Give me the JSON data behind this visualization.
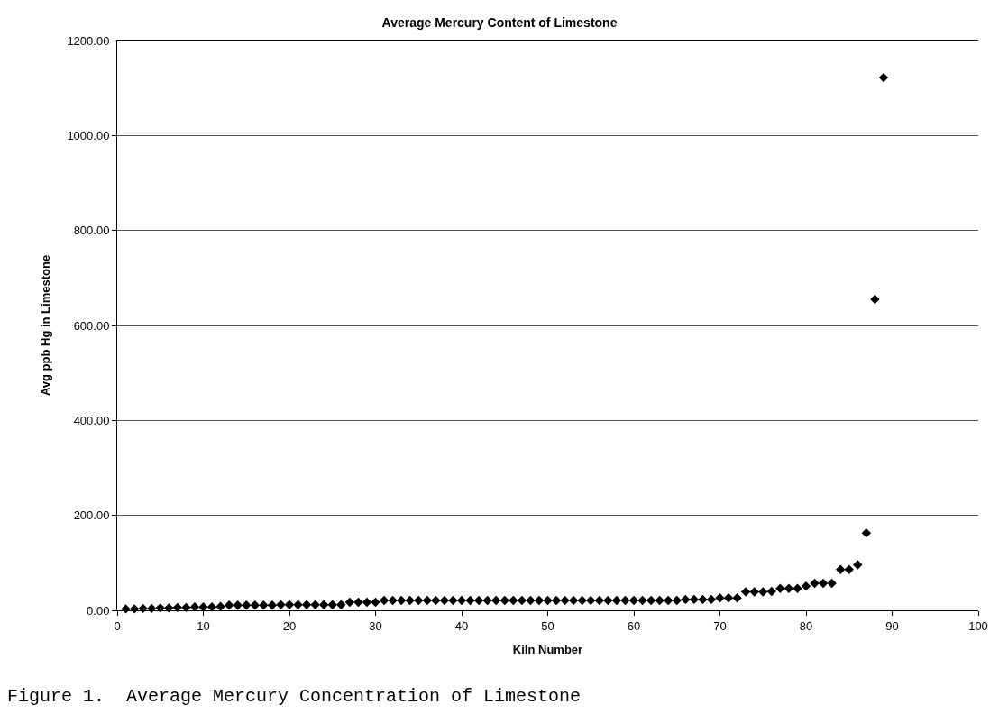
{
  "chart_data": {
    "type": "scatter",
    "title": "Average Mercury Content of Limestone",
    "xlabel": "Kiln Number",
    "ylabel": "Avg ppb Hg in Limestone",
    "annotations": [
      "Figure 1.  Average Mercury Concentration of Limestone"
    ],
    "x": [
      1,
      2,
      3,
      4,
      5,
      6,
      7,
      8,
      9,
      10,
      11,
      12,
      13,
      14,
      15,
      16,
      17,
      18,
      19,
      20,
      21,
      22,
      23,
      24,
      25,
      26,
      27,
      28,
      29,
      30,
      31,
      32,
      33,
      34,
      35,
      36,
      37,
      38,
      39,
      40,
      41,
      42,
      43,
      44,
      45,
      46,
      47,
      48,
      49,
      50,
      51,
      52,
      53,
      54,
      55,
      56,
      57,
      58,
      59,
      60,
      61,
      62,
      63,
      64,
      65,
      66,
      67,
      68,
      69,
      70,
      71,
      72,
      73,
      74,
      75,
      76,
      77,
      78,
      79,
      80,
      81,
      82,
      83,
      84,
      85,
      86,
      87,
      88,
      89
    ],
    "series": [
      {
        "color": "#000000",
        "values": [
          3,
          3,
          4,
          4,
          5,
          5,
          6,
          6,
          7,
          7,
          7,
          8,
          11,
          11,
          11,
          11,
          11,
          11,
          12,
          12,
          12,
          12,
          12,
          12,
          12,
          12,
          17,
          17,
          17,
          17,
          21,
          21,
          21,
          21,
          21,
          21,
          21,
          21,
          21,
          21,
          21,
          21,
          21,
          21,
          21,
          21,
          21,
          21,
          21,
          21,
          21,
          21,
          21,
          21,
          21,
          21,
          21,
          21,
          21,
          21,
          21,
          21,
          21,
          21,
          21,
          23,
          23,
          23,
          23,
          26,
          26,
          26,
          39,
          39,
          39,
          40,
          46,
          46,
          46,
          51,
          57,
          57,
          57,
          86,
          86,
          96,
          163,
          655,
          1122
        ]
      }
    ],
    "xlim": [
      0,
      100
    ],
    "xticks": [
      0,
      10,
      20,
      30,
      40,
      50,
      60,
      70,
      80,
      90,
      100
    ],
    "ylim": [
      0,
      1200
    ],
    "yticks": [
      {
        "value": 0,
        "label": "0.00"
      },
      {
        "value": 200,
        "label": "200.00"
      },
      {
        "value": 400,
        "label": "400.00"
      },
      {
        "value": 600,
        "label": "600.00"
      },
      {
        "value": 800,
        "label": "800.00"
      },
      {
        "value": 1000,
        "label": "1000.00"
      },
      {
        "value": 1200,
        "label": "1200.00"
      }
    ],
    "grid": "y",
    "marker": "diamond"
  }
}
